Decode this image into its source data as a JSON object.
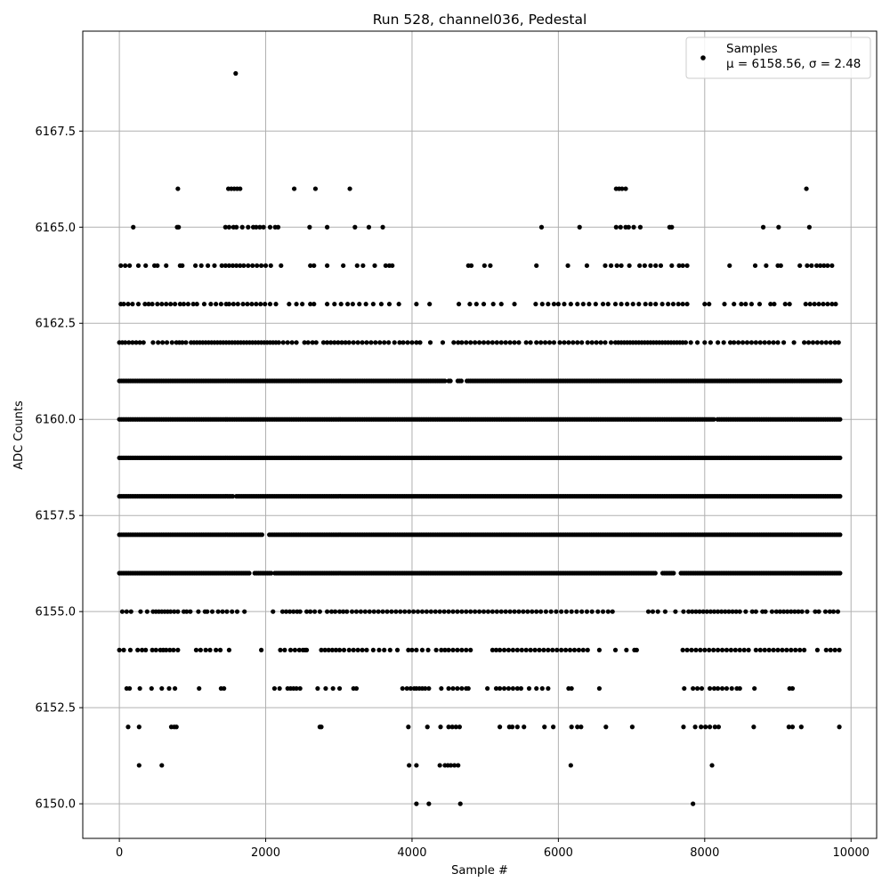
{
  "chart_data": {
    "type": "scatter",
    "title": "Run 528, channel036, Pedestal",
    "xlabel": "Sample #",
    "ylabel": "ADC Counts",
    "xlim": [
      -500,
      10350
    ],
    "ylim": [
      6149.1,
      6170.1
    ],
    "xticks": [
      0,
      2000,
      4000,
      6000,
      8000,
      10000
    ],
    "xtick_labels": [
      "0",
      "2000",
      "4000",
      "6000",
      "8000",
      "10000"
    ],
    "yticks": [
      6150.0,
      6152.5,
      6155.0,
      6157.5,
      6160.0,
      6162.5,
      6165.0,
      6167.5
    ],
    "ytick_labels": [
      "6150.0",
      "6152.5",
      "6155.0",
      "6157.5",
      "6160.0",
      "6162.5",
      "6165.0",
      "6167.5"
    ],
    "grid": true,
    "legend_position": "top-right",
    "series": [
      {
        "name": "Samples",
        "color": "#000000",
        "marker": "circle",
        "n_samples": 9850,
        "levels": [
          {
            "y": 6169,
            "x": [
              1590
            ]
          },
          {
            "y": 6166,
            "x": [
              800,
              1490,
              1530,
              1570,
              1610,
              1650,
              2390,
              2680,
              3150,
              6790,
              6830,
              6870,
              6920,
              9390
            ]
          },
          {
            "y": 6165,
            "x": [
              190,
              790,
              810,
              1450,
              1500,
              1560,
              1600,
              1680,
              1760,
              1830,
              1870,
              1920,
              1970,
              2060,
              2130,
              2170,
              2600,
              2840,
              3220,
              3410,
              3600,
              5770,
              6290,
              6790,
              6850,
              6920,
              6960,
              7030,
              7120,
              7520,
              7550,
              8800,
              9010,
              9430
            ]
          },
          {
            "y": 6164,
            "x": [
              20,
              80,
              140,
              260,
              360,
              480,
              520,
              640,
              830,
              860,
              1040,
              1120,
              1210,
              1300,
              1400,
              1450,
              1500,
              1550,
              1600,
              1650,
              1700,
              1760,
              1820,
              1880,
              1940,
              2000,
              2070,
              2210,
              2610,
              2660,
              2840,
              3060,
              3250,
              3330,
              3490,
              3640,
              3690,
              3730,
              4770,
              4810,
              4990,
              5070,
              5700,
              6130,
              6390,
              6640,
              6720,
              6800,
              6860,
              6970,
              7110,
              7180,
              7260,
              7330,
              7400,
              7550,
              7650,
              7700,
              7760,
              8340,
              8690,
              8840,
              9000,
              9040,
              9300,
              9400,
              9460,
              9530,
              9580,
              9630,
              9680,
              9740
            ]
          },
          {
            "y": 6163,
            "x": [
              20,
              60,
              120,
              180,
              260,
              350,
              400,
              450,
              520,
              580,
              640,
              700,
              760,
              830,
              880,
              940,
              1010,
              1060,
              1160,
              1250,
              1320,
              1390,
              1460,
              1500,
              1560,
              1620,
              1690,
              1750,
              1810,
              1870,
              1930,
              1990,
              2060,
              2140,
              2320,
              2420,
              2500,
              2610,
              2660,
              2840,
              2940,
              3030,
              3120,
              3190,
              3280,
              3370,
              3470,
              3580,
              3690,
              3820,
              4060,
              4240,
              4640,
              4790,
              4880,
              4980,
              5110,
              5220,
              5400,
              5690,
              5780,
              5860,
              5940,
              6000,
              6080,
              6170,
              6260,
              6340,
              6420,
              6510,
              6610,
              6680,
              6780,
              6860,
              6940,
              7020,
              7100,
              7190,
              7260,
              7330,
              7420,
              7500,
              7570,
              7640,
              7700,
              7760,
              8000,
              8060,
              8270,
              8400,
              8500,
              8560,
              8640,
              8750,
              8900,
              8950,
              9100,
              9160,
              9380,
              9440,
              9500,
              9560,
              9620,
              9680,
              9740,
              9790
            ]
          },
          {
            "y": 6162,
            "x": [
              0,
              40,
              80,
              130,
              180,
              230,
              280,
              330,
              460,
              530,
              590,
              650,
              720,
              780,
              820,
              860,
              910,
              980,
              1020,
              1060,
              1100,
              1140,
              1180,
              1220,
              1260,
              1300,
              1340,
              1380,
              1420,
              1460,
              1500,
              1540,
              1580,
              1620,
              1660,
              1700,
              1740,
              1780,
              1820,
              1860,
              1900,
              1940,
              1980,
              2020,
              2060,
              2100,
              2140,
              2180,
              2240,
              2300,
              2360,
              2420,
              2530,
              2580,
              2640,
              2690,
              2790,
              2840,
              2890,
              2940,
              2990,
              3040,
              3090,
              3140,
              3200,
              3260,
              3320,
              3380,
              3440,
              3500,
              3560,
              3620,
              3680,
              3760,
              3830,
              3880,
              3940,
              4000,
              4060,
              4110,
              4250,
              4420,
              4570,
              4630,
              4680,
              4740,
              4800,
              4860,
              4920,
              4980,
              5040,
              5100,
              5160,
              5220,
              5280,
              5340,
              5400,
              5460,
              5560,
              5620,
              5700,
              5760,
              5820,
              5880,
              5940,
              6020,
              6080,
              6140,
              6200,
              6260,
              6320,
              6400,
              6460,
              6520,
              6580,
              6640,
              6720,
              6780,
              6820,
              6860,
              6900,
              6940,
              6980,
              7020,
              7060,
              7100,
              7140,
              7180,
              7220,
              7260,
              7300,
              7340,
              7380,
              7420,
              7460,
              7500,
              7540,
              7580,
              7620,
              7660,
              7700,
              7740,
              7810,
              7900,
              8000,
              8080,
              8180,
              8260,
              8350,
              8400,
              8460,
              8520,
              8580,
              8640,
              8700,
              8760,
              8820,
              8880,
              8940,
              9000,
              9080,
              9220,
              9360,
              9420,
              9480,
              9540,
              9600,
              9660,
              9720,
              9780,
              9830
            ]
          },
          {
            "y": 6161,
            "dense": true,
            "x_range": [
              0,
              9850
            ],
            "gaps": [
              [
                4460,
                4490
              ],
              [
                4550,
                4610
              ],
              [
                4690,
                4740
              ]
            ]
          },
          {
            "y": 6160,
            "dense": true,
            "x_range": [
              0,
              9850
            ],
            "gaps": [
              [
                8140,
                8170
              ]
            ]
          },
          {
            "y": 6159,
            "dense": true,
            "x_range": [
              0,
              9850
            ],
            "gaps": []
          },
          {
            "y": 6158,
            "dense": true,
            "x_range": [
              0,
              9850
            ],
            "gaps": [
              [
                1560,
                1590
              ]
            ]
          },
          {
            "y": 6157,
            "dense": true,
            "x_range": [
              0,
              9850
            ],
            "gaps": [
              [
                1960,
                2030
              ]
            ]
          },
          {
            "y": 6156,
            "dense": true,
            "x_range": [
              0,
              9850
            ],
            "gaps": [
              [
                1780,
                1840
              ],
              [
                2080,
                2110
              ],
              [
                7350,
                7400
              ],
              [
                7600,
                7670
              ]
            ]
          },
          {
            "y": 6155,
            "x": [
              40,
              100,
              160,
              290,
              380,
              460,
              500,
              540,
              580,
              620,
              660,
              700,
              750,
              800,
              880,
              920,
              970,
              1080,
              1170,
              1200,
              1270,
              1350,
              1410,
              1470,
              1540,
              1610,
              1710,
              2100,
              2230,
              2280,
              2330,
              2380,
              2430,
              2470,
              2560,
              2610,
              2670,
              2740,
              2840,
              2900,
              2950,
              3010,
              3060,
              3110,
              3180,
              3240,
              3300,
              3360,
              3420,
              3480,
              3540,
              3600,
              3660,
              3720,
              3780,
              3840,
              3900,
              3960,
              4020,
              4080,
              4140,
              4200,
              4260,
              4320,
              4380,
              4440,
              4500,
              4560,
              4620,
              4680,
              4740,
              4800,
              4860,
              4920,
              4980,
              5040,
              5100,
              5160,
              5220,
              5280,
              5340,
              5400,
              5460,
              5520,
              5580,
              5640,
              5700,
              5760,
              5830,
              5900,
              5970,
              6040,
              6110,
              6180,
              6250,
              6320,
              6390,
              6460,
              6540,
              6610,
              6680,
              6740,
              7230,
              7290,
              7360,
              7460,
              7600,
              7710,
              7780,
              7830,
              7880,
              7930,
              7980,
              8030,
              8080,
              8130,
              8180,
              8230,
              8280,
              8330,
              8380,
              8430,
              8480,
              8560,
              8650,
              8700,
              8790,
              8830,
              8920,
              8980,
              9030,
              9080,
              9130,
              9180,
              9230,
              9280,
              9330,
              9400,
              9510,
              9560,
              9650,
              9710,
              9760,
              9820
            ]
          },
          {
            "y": 6154,
            "x": [
              0,
              60,
              150,
              250,
              310,
              360,
              450,
              500,
              560,
              600,
              640,
              690,
              740,
              800,
              1050,
              1110,
              1180,
              1240,
              1320,
              1380,
              1500,
              1940,
              2200,
              2260,
              2340,
              2400,
              2460,
              2510,
              2540,
              2560,
              2760,
              2810,
              2860,
              2910,
              2960,
              3010,
              3070,
              3140,
              3200,
              3260,
              3320,
              3380,
              3470,
              3550,
              3620,
              3700,
              3800,
              3950,
              4000,
              4060,
              4140,
              4220,
              4330,
              4400,
              4450,
              4500,
              4560,
              4620,
              4680,
              4740,
              4800,
              5100,
              5150,
              5200,
              5260,
              5320,
              5380,
              5440,
              5500,
              5560,
              5620,
              5680,
              5740,
              5800,
              5860,
              5920,
              5980,
              6040,
              6100,
              6160,
              6220,
              6280,
              6340,
              6400,
              6560,
              6780,
              6930,
              7040,
              7070,
              7700,
              7760,
              7820,
              7880,
              7940,
              8000,
              8060,
              8120,
              8180,
              8240,
              8300,
              8360,
              8420,
              8480,
              8540,
              8600,
              8700,
              8760,
              8820,
              8880,
              8940,
              9000,
              9060,
              9120,
              9180,
              9240,
              9300,
              9360,
              9540,
              9660,
              9720,
              9780,
              9840
            ]
          },
          {
            "y": 6153,
            "x": [
              100,
              140,
              280,
              440,
              580,
              680,
              760,
              1090,
              1390,
              1430,
              2120,
              2190,
              2300,
              2340,
              2380,
              2420,
              2470,
              2710,
              2820,
              2920,
              3010,
              3200,
              3240,
              3870,
              3930,
              3980,
              4030,
              4060,
              4100,
              4140,
              4180,
              4230,
              4400,
              4500,
              4560,
              4620,
              4680,
              4740,
              4770,
              5030,
              5150,
              5200,
              5260,
              5320,
              5380,
              5440,
              5490,
              5600,
              5700,
              5780,
              5860,
              6140,
              6180,
              6560,
              7720,
              7840,
              7900,
              7960,
              8070,
              8130,
              8180,
              8240,
              8300,
              8370,
              8440,
              8480,
              8680,
              9160,
              9200
            ]
          },
          {
            "y": 6152,
            "x": [
              120,
              270,
              710,
              750,
              780,
              2740,
              2760,
              3950,
              4210,
              4390,
              4500,
              4550,
              4600,
              4650,
              5200,
              5330,
              5370,
              5440,
              5530,
              5810,
              5930,
              6180,
              6260,
              6310,
              6650,
              7010,
              7710,
              7870,
              7950,
              8010,
              8070,
              8140,
              8190,
              8670,
              9150,
              9200,
              9320,
              9840
            ]
          },
          {
            "y": 6151,
            "x": [
              270,
              580,
              3960,
              4060,
              4380,
              4450,
              4490,
              4530,
              4580,
              4630,
              6170,
              8100
            ]
          },
          {
            "y": 6150,
            "x": [
              4060,
              4230,
              4660,
              7840
            ]
          }
        ]
      }
    ],
    "legend": {
      "label": "Samples",
      "stats": "μ = 6158.56, σ = 2.48"
    }
  }
}
